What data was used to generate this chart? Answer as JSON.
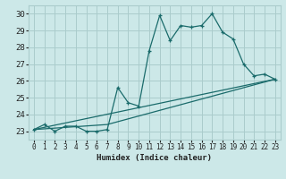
{
  "xlabel": "Humidex (Indice chaleur)",
  "bg_color": "#cce8e8",
  "grid_color": "#aacccc",
  "line_color": "#1a6b6b",
  "xlim": [
    -0.5,
    23.5
  ],
  "ylim": [
    22.5,
    30.5
  ],
  "xticks": [
    0,
    1,
    2,
    3,
    4,
    5,
    6,
    7,
    8,
    9,
    10,
    11,
    12,
    13,
    14,
    15,
    16,
    17,
    18,
    19,
    20,
    21,
    22,
    23
  ],
  "yticks": [
    23,
    24,
    25,
    26,
    27,
    28,
    29,
    30
  ],
  "line1_x": [
    0,
    1,
    2,
    3,
    4,
    5,
    6,
    7,
    8,
    9,
    10,
    11,
    12,
    13,
    14,
    15,
    16,
    17,
    18,
    19,
    20,
    21,
    22,
    23
  ],
  "line1_y": [
    23.1,
    23.4,
    23.0,
    23.3,
    23.3,
    23.0,
    23.0,
    23.1,
    25.6,
    24.7,
    24.5,
    27.8,
    29.9,
    28.4,
    29.3,
    29.2,
    29.3,
    30.0,
    28.9,
    28.5,
    27.0,
    26.3,
    26.4,
    26.1
  ],
  "line2_x": [
    0,
    23
  ],
  "line2_y": [
    23.1,
    26.1
  ],
  "line3_x": [
    0,
    7,
    23
  ],
  "line3_y": [
    23.1,
    23.4,
    26.1
  ]
}
